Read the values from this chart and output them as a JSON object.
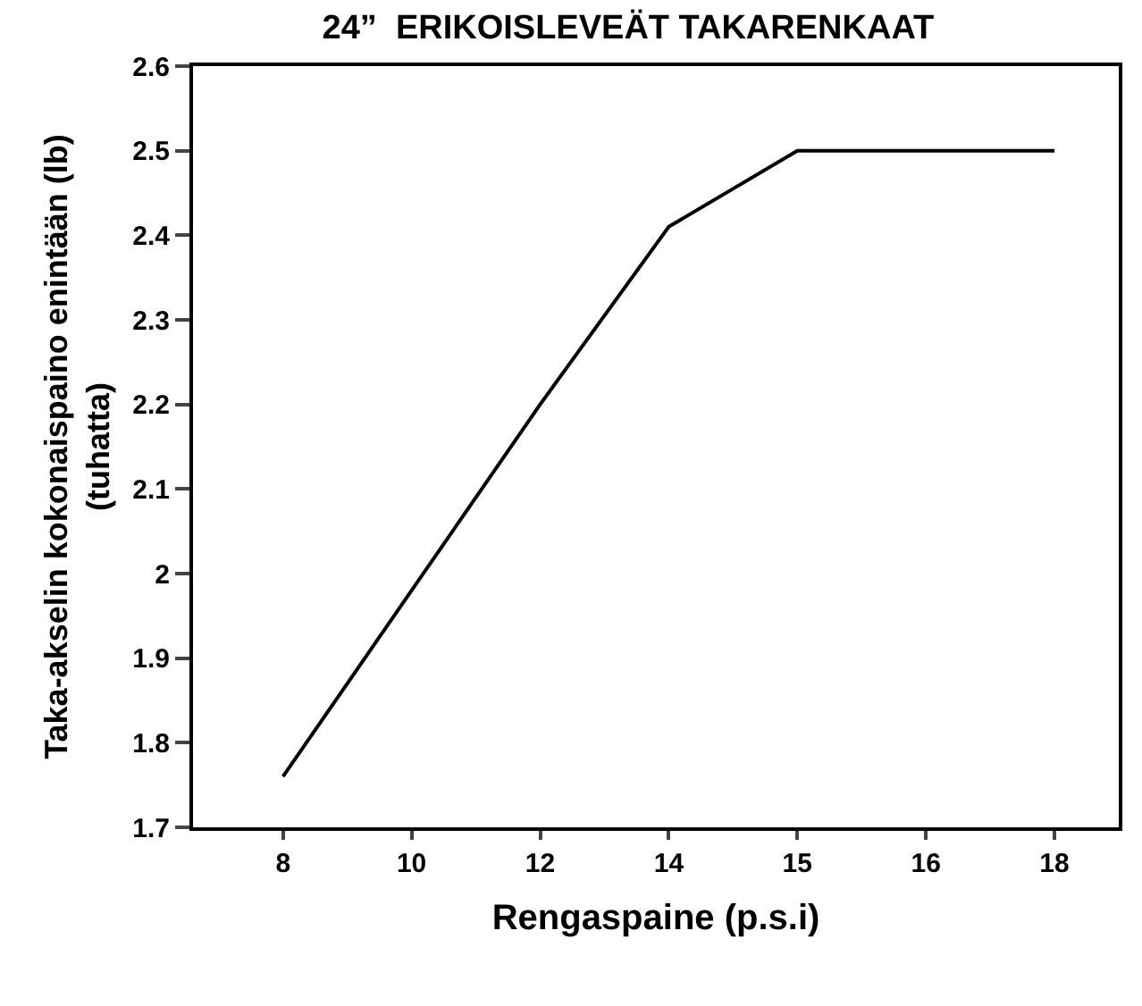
{
  "chart_data": {
    "type": "line",
    "title": "24”  ERIKOISLEVEÄT TAKARENKAAT",
    "xlabel": "Rengaspaine (p.s.i)",
    "ylabel": "Taka-akselin kokonaispaino enintään (lb)\n(tuhatta)",
    "categories": [
      "8",
      "10",
      "12",
      "14",
      "15",
      "16",
      "18"
    ],
    "series": [
      {
        "color": "#000000",
        "values": [
          1.76,
          1.98,
          2.2,
          2.41,
          2.5,
          2.5,
          2.5
        ]
      }
    ],
    "ylim": [
      1.7,
      2.6
    ],
    "yticks": [
      1.7,
      1.8,
      1.9,
      2,
      2.1,
      2.2,
      2.3,
      2.4,
      2.5,
      2.6
    ],
    "legend": false,
    "marker": "none",
    "line_style": "solid"
  }
}
